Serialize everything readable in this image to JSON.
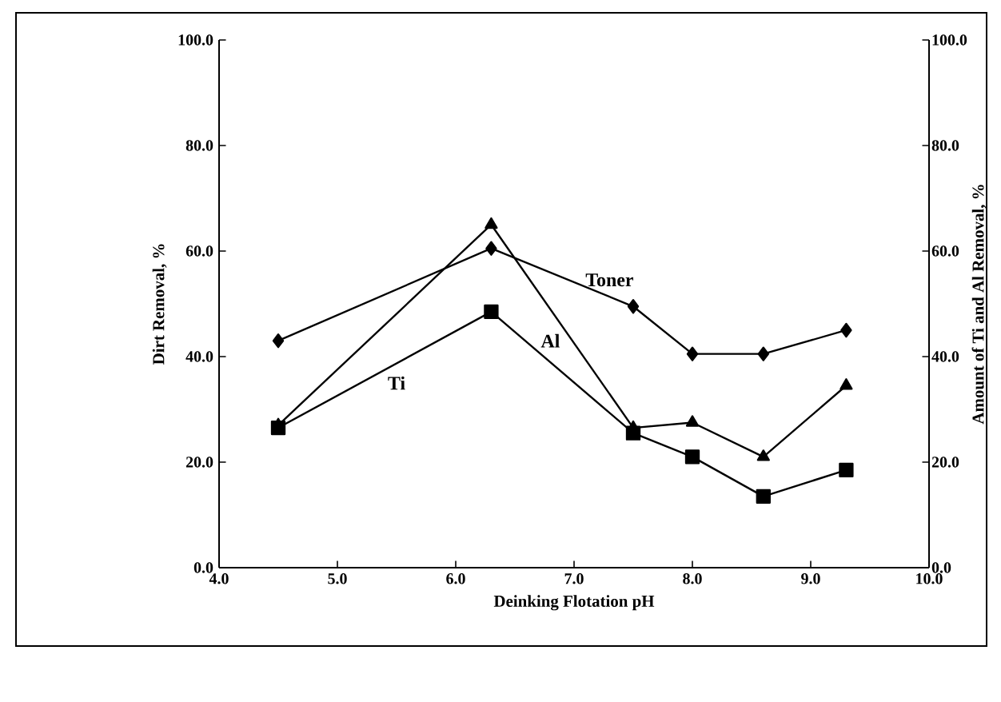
{
  "chart_data": {
    "type": "line",
    "xlabel": "Deinking Flotation pH",
    "ylabel": "Dirt Removal, %",
    "y2label": "Amount of Ti and Al Removal, %",
    "xlim": [
      4,
      10
    ],
    "xticks": [
      {
        "value": 4,
        "label": "4.0"
      },
      {
        "value": 5,
        "label": "5.0"
      },
      {
        "value": 6,
        "label": "6.0"
      },
      {
        "value": 7,
        "label": "7.0"
      },
      {
        "value": 8,
        "label": "8.0"
      },
      {
        "value": 9,
        "label": "9.0"
      },
      {
        "value": 10,
        "label": "10.0"
      }
    ],
    "ylim": [
      0,
      100
    ],
    "yticks": [
      {
        "value": 0,
        "label": "0.0"
      },
      {
        "value": 20,
        "label": "20.0"
      },
      {
        "value": 40,
        "label": "40.0"
      },
      {
        "value": 60,
        "label": "60.0"
      },
      {
        "value": 80,
        "label": "80.0"
      },
      {
        "value": 100,
        "label": "100.0"
      }
    ],
    "y2lim": [
      0,
      100
    ],
    "y2ticks": [
      {
        "value": 0,
        "label": "0.0"
      },
      {
        "value": 20,
        "label": "20.0"
      },
      {
        "value": 40,
        "label": "40.0"
      },
      {
        "value": 60,
        "label": "60.0"
      },
      {
        "value": 80,
        "label": "80.0"
      },
      {
        "value": 100,
        "label": "100.0"
      }
    ],
    "x": [
      4.5,
      6.3,
      7.5,
      8.0,
      8.6,
      9.3
    ],
    "series": [
      {
        "name": "Toner",
        "color": "#000000",
        "marker": "diamond",
        "values": [
          43,
          60.5,
          49.5,
          40.5,
          40.5,
          45
        ]
      },
      {
        "name": "Al",
        "color": "#000000",
        "marker": "triangle",
        "axis": "y2",
        "values": [
          27,
          65,
          26.5,
          27.5,
          21,
          34.5
        ]
      },
      {
        "name": "Ti",
        "color": "#000000",
        "marker": "square",
        "axis": "y2",
        "values": [
          26.5,
          48.5,
          25.5,
          21,
          13.5,
          18.5
        ]
      }
    ],
    "line_style": "solid"
  }
}
